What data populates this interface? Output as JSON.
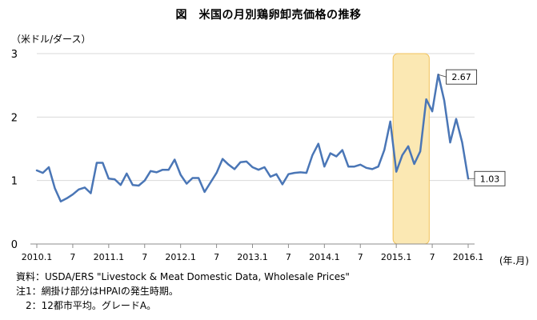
{
  "chart_data": {
    "type": "line",
    "title": "図　米国の月別鶏卵卸売価格の推移",
    "ylabel": "（米ドル/ダース）",
    "xunit": "(年.月)",
    "ylim": [
      0,
      3
    ],
    "yticks": [
      "0",
      "1",
      "2",
      "3"
    ],
    "xticks": [
      {
        "index": 0,
        "label": "2010.1"
      },
      {
        "index": 6,
        "label": "7"
      },
      {
        "index": 12,
        "label": "2011.1"
      },
      {
        "index": 18,
        "label": "7"
      },
      {
        "index": 24,
        "label": "2012.1"
      },
      {
        "index": 30,
        "label": "7"
      },
      {
        "index": 36,
        "label": "2013.1"
      },
      {
        "index": 42,
        "label": "7"
      },
      {
        "index": 48,
        "label": "2014.1"
      },
      {
        "index": 54,
        "label": "7"
      },
      {
        "index": 60,
        "label": "2015.1"
      },
      {
        "index": 66,
        "label": "7"
      },
      {
        "index": 72,
        "label": "2016.1"
      }
    ],
    "highlight": {
      "from": 60.0,
      "to": 65.5
    },
    "series": [
      {
        "color": "#4a76b6",
        "values": [
          1.16,
          1.12,
          1.21,
          0.88,
          0.67,
          0.72,
          0.78,
          0.86,
          0.89,
          0.8,
          1.28,
          1.28,
          1.03,
          1.02,
          0.93,
          1.11,
          0.93,
          0.92,
          1.0,
          1.15,
          1.13,
          1.17,
          1.17,
          1.33,
          1.09,
          0.95,
          1.04,
          1.04,
          0.82,
          0.97,
          1.12,
          1.34,
          1.25,
          1.18,
          1.29,
          1.3,
          1.21,
          1.17,
          1.21,
          1.06,
          1.1,
          0.94,
          1.1,
          1.12,
          1.13,
          1.12,
          1.4,
          1.58,
          1.22,
          1.43,
          1.38,
          1.48,
          1.22,
          1.22,
          1.25,
          1.2,
          1.18,
          1.22,
          1.48,
          1.93,
          1.14,
          1.4,
          1.54,
          1.26,
          1.46,
          2.28,
          2.09,
          2.67,
          2.26,
          1.6,
          1.97,
          1.6,
          1.03
        ]
      }
    ],
    "callouts": [
      {
        "index": 67,
        "label": "2.67"
      },
      {
        "index": 72,
        "label": "1.03"
      }
    ]
  },
  "notes": {
    "source": "資料：USDA/ERS \"Livestock & Meat Domestic Data, Wholesale Prices\"",
    "note1": "注1：網掛け部分はHPAIの発生時期。",
    "note2": "2：12都市平均。グレードA。"
  }
}
